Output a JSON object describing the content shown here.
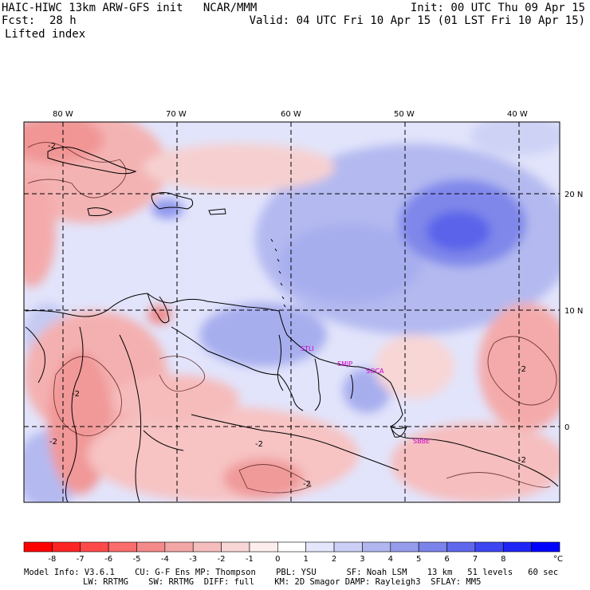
{
  "header": {
    "title": "HAIC-HIWC 13km ARW-GFS init   NCAR/MMM",
    "fcst_label": "Fcst:",
    "fcst_value": "28 h",
    "variable": "Lifted index",
    "init": "Init: 00 UTC Thu 09 Apr 15",
    "valid": "Valid: 04 UTC Fri 10 Apr 15 (01 LST Fri 10 Apr 15)"
  },
  "map": {
    "lon_labels": [
      "80 W",
      "70 W",
      "60 W",
      "50 W",
      "40 W"
    ],
    "lat_labels": [
      "20 N",
      "10 N",
      "0"
    ],
    "stations": [
      "STLI",
      "SMJP",
      "SOCA",
      "SBBE"
    ],
    "contour_labels": [
      "-2",
      "-2",
      "-2",
      "-2",
      "-2",
      "-2",
      "-2"
    ],
    "colors": {
      "strong_neg": "#ff0000",
      "neg": "#f4a3a3",
      "neutral": "#ffffff",
      "pos": "#b8bff2",
      "strong_pos": "#0000ee",
      "station": "#cc00cc"
    }
  },
  "colorbar": {
    "labels": [
      "-8",
      "-7",
      "-6",
      "-5",
      "-4",
      "-3",
      "-2",
      "-1",
      "0",
      "1",
      "2",
      "3",
      "4",
      "5",
      "6",
      "7",
      "8"
    ],
    "unit": "°C",
    "colors": [
      "#ff0000",
      "#ff2424",
      "#ff4a4a",
      "#fb6c6c",
      "#f58a8a",
      "#f3a6a6",
      "#f5bdbd",
      "#f9d6d6",
      "#fdeeee",
      "#ffffff",
      "#e4e6fb",
      "#cbcff5",
      "#b1b6f0",
      "#959cec",
      "#7b83ea",
      "#5f67ec",
      "#3d46f0",
      "#1f25f5",
      "#0000ff"
    ]
  },
  "footer": {
    "line1": "Model Info: V3.6.1    CU: G-F Ens MP: Thompson    PBL: YSU      SF: Noah LSM    13 km   51 levels   60 sec",
    "line2": "LW: RRTMG    SW: RRTMG  DIFF: full    KM: 2D Smagor DAMP: Rayleigh3  SFLAY: MM5"
  }
}
